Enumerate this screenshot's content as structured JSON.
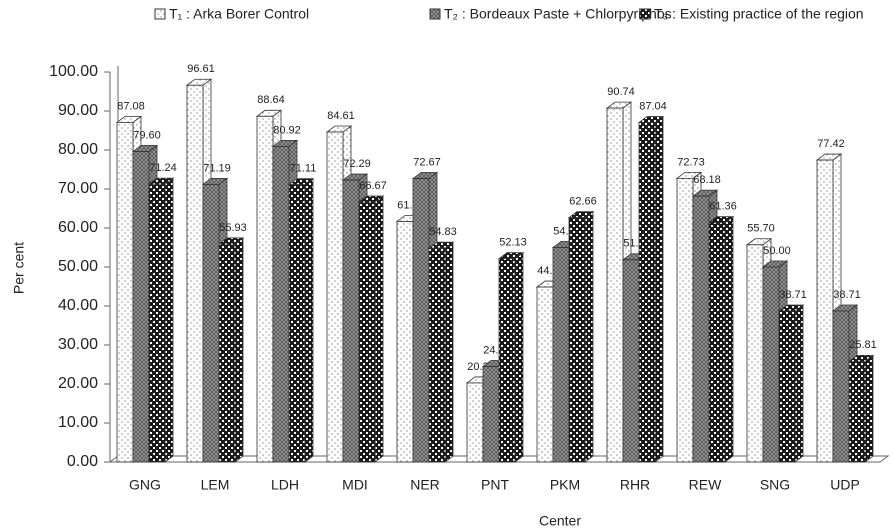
{
  "chart_data": {
    "type": "bar",
    "x_label": "Center",
    "y_label": "Per cent",
    "categories": [
      "GNG",
      "LEM",
      "LDH",
      "MDI",
      "NER",
      "PNT",
      "PKM",
      "RHR",
      "REW",
      "SNG",
      "UDP"
    ],
    "series": [
      {
        "name": "T₁ : Arka Borer Control",
        "color": "#ffffff",
        "values": [
          87.08,
          96.61,
          88.64,
          84.61,
          61.67,
          20.27,
          44.86,
          90.74,
          72.73,
          55.7,
          77.42
        ],
        "value_labels": [
          "87.08",
          "96.61",
          "88.64",
          "84.61",
          "61.67",
          "20.27",
          "44.86",
          "90.74",
          "72.73",
          "55.70",
          "77.42"
        ]
      },
      {
        "name": "T₂ : Bordeaux Paste + Chlorpyriphos",
        "color": "#9a9a9a",
        "values": [
          79.6,
          71.19,
          80.92,
          72.29,
          72.67,
          24.47,
          54.99,
          51.85,
          68.18,
          50.0,
          38.71
        ],
        "value_labels": [
          "79.60",
          "71.19",
          "80.92",
          "72.29",
          "72.67",
          "24.47",
          "54.99",
          "51.85",
          "68.18",
          "50.00",
          "38.71"
        ]
      },
      {
        "name": "T₃ : Existing practice of the region",
        "color": "#1a1a1a",
        "values": [
          71.24,
          55.93,
          71.11,
          66.67,
          54.83,
          52.13,
          62.66,
          87.04,
          61.36,
          38.71,
          25.81
        ],
        "value_labels": [
          "71.24",
          "55.93",
          "71.11",
          "66.67",
          "54.83",
          "52.13",
          "62.66",
          "87.04",
          "61.36",
          "38.71",
          "25.81"
        ]
      }
    ],
    "ylim": [
      0,
      100
    ],
    "yticks": [
      {
        "value": 0,
        "label": "0.00"
      },
      {
        "value": 10,
        "label": "10.00"
      },
      {
        "value": 20,
        "label": "20.00"
      },
      {
        "value": 30,
        "label": "30.00"
      },
      {
        "value": 40,
        "label": "40.00"
      },
      {
        "value": 50,
        "label": "50.00"
      },
      {
        "value": 60,
        "label": "60.00"
      },
      {
        "value": 70,
        "label": "70.00"
      },
      {
        "value": 80,
        "label": "80.00"
      },
      {
        "value": 90,
        "label": "90.00"
      },
      {
        "value": 100,
        "label": "100.00"
      }
    ],
    "legend": "top",
    "grid": false
  }
}
